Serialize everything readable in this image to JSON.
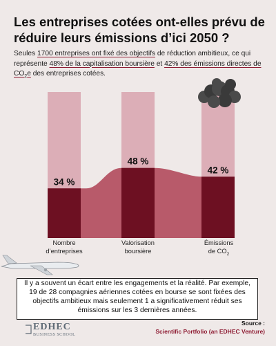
{
  "header": {
    "title": "Les entreprises cotées ont-elles prévu de réduire leurs émissions d’ici 2050 ?",
    "subtitle_1": "Seules ",
    "subtitle_2": "1700 entreprises ont fixé des objectifs",
    "subtitle_3": " de réduction ambitieux, ce qui représente ",
    "subtitle_4": "48% de la capitalisation boursière",
    "subtitle_5": " et ",
    "subtitle_6": "42% des émissions directes de CO",
    "subtitle_7": "2",
    "subtitle_8": "e",
    "subtitle_9": " des entreprises cotées."
  },
  "chart_data": {
    "type": "bar",
    "categories": [
      "Nombre d’entreprises",
      "Valorisation boursière",
      "Émissions de CO2"
    ],
    "values": [
      34,
      48,
      42
    ],
    "value_labels": [
      "34 %",
      "48 %",
      "42 %"
    ],
    "ylim": [
      0,
      100
    ],
    "unit": "%",
    "background_bar_value": 100
  },
  "labels": {
    "cat1_line1": "Nombre",
    "cat1_line2": "d’entreprises",
    "cat2_line1": "Valorisation",
    "cat2_line2": "boursière",
    "cat3_line1": "Émissions",
    "cat3_line2": "de CO",
    "cat3_sub": "2"
  },
  "callout": {
    "text": "Il y a souvent un écart entre les engagements et la réalité. Par exemple, 19 de 28 compagnies aériennes cotées en bourse se sont fixées des objectifs ambitieux mais seulement 1 a significativement réduit ses émissions sur les 3 dernières années."
  },
  "source": {
    "label": "Source :",
    "value": "Scientific Portfolio (an EDHEC Venture)"
  },
  "logo": {
    "main": "EDHEC",
    "sub": "BUSINESS SCHOOL"
  },
  "colors": {
    "background": "#efe9e8",
    "bar_light": "#dcaeb7",
    "bar_dark": "#6d1022",
    "area": "#b14a5c",
    "accent": "#8e1c33"
  }
}
